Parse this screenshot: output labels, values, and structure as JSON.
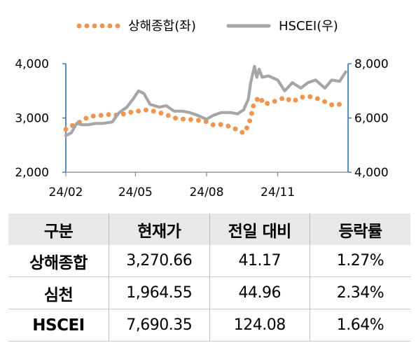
{
  "chart_data": {
    "type": "line",
    "legend": {
      "placement": "top-center"
    },
    "x_ticks": [
      "24/02",
      "24/05",
      "24/08",
      "24/11"
    ],
    "y_left": {
      "ticks": [
        "4,000",
        "3,000",
        "2,000"
      ],
      "range": [
        2000,
        4000
      ]
    },
    "y_right": {
      "ticks": [
        "8,000",
        "6,000",
        "4,000"
      ],
      "range": [
        4000,
        8000
      ]
    },
    "series": [
      {
        "name": "상해종합(좌)",
        "axis": "left",
        "style": "dotted",
        "color": "#f0954d",
        "x": [
          "24/02/01",
          "24/02/08",
          "24/02/20",
          "24/03/01",
          "24/03/10",
          "24/03/20",
          "24/04/01",
          "24/04/10",
          "24/04/20",
          "24/05/01",
          "24/05/10",
          "24/05/20",
          "24/06/01",
          "24/06/10",
          "24/06/20",
          "24/07/01",
          "24/07/10",
          "24/07/20",
          "24/08/01",
          "24/08/10",
          "24/08/20",
          "24/09/01",
          "24/09/10",
          "24/09/18",
          "24/09/24",
          "24/09/27",
          "24/10/01",
          "24/10/08",
          "24/10/15",
          "24/10/25",
          "24/11/01",
          "24/11/10",
          "24/11/20",
          "24/12/01",
          "24/12/10",
          "24/12/20",
          "25/01/01",
          "25/01/10",
          "25/01/20"
        ],
        "values": [
          2790,
          2850,
          2930,
          3020,
          3040,
          3050,
          3070,
          3040,
          3100,
          3110,
          3150,
          3140,
          3100,
          3060,
          3000,
          2980,
          2970,
          2960,
          2930,
          2870,
          2880,
          2840,
          2780,
          2720,
          2860,
          3000,
          3250,
          3390,
          3250,
          3300,
          3320,
          3380,
          3300,
          3380,
          3400,
          3370,
          3300,
          3240,
          3250
        ]
      },
      {
        "name": "HSCEI(우)",
        "axis": "right",
        "style": "solid",
        "color": "#a6a6a6",
        "x": [
          "24/02/01",
          "24/02/08",
          "24/02/15",
          "24/02/22",
          "24/03/01",
          "24/03/10",
          "24/03/20",
          "24/04/01",
          "24/04/10",
          "24/04/20",
          "24/04/28",
          "24/05/05",
          "24/05/12",
          "24/05/20",
          "24/06/01",
          "24/06/10",
          "24/06/20",
          "24/07/01",
          "24/07/10",
          "24/07/20",
          "24/08/01",
          "24/08/10",
          "24/08/20",
          "24/09/01",
          "24/09/10",
          "24/09/18",
          "24/09/24",
          "24/09/27",
          "24/10/02",
          "24/10/05",
          "24/10/08",
          "24/10/12",
          "24/10/20",
          "24/11/01",
          "24/11/10",
          "24/11/20",
          "24/12/01",
          "24/12/10",
          "24/12/20",
          "25/01/01",
          "25/01/10",
          "25/01/20",
          "25/01/28"
        ],
        "values": [
          5350,
          5450,
          5800,
          5750,
          5750,
          5800,
          5800,
          5850,
          6200,
          6400,
          6700,
          7000,
          6900,
          6500,
          6400,
          6450,
          6250,
          6250,
          6200,
          6100,
          5950,
          6100,
          6200,
          6200,
          6150,
          6300,
          6700,
          7300,
          7900,
          7500,
          7800,
          7500,
          7550,
          7400,
          7000,
          7300,
          7100,
          7300,
          7400,
          7100,
          7400,
          7350,
          7700
        ]
      }
    ]
  },
  "table": {
    "headers": [
      "구분",
      "현재가",
      "전일 대비",
      "등락률"
    ],
    "rows": [
      [
        "상해종합",
        "3,270.66",
        "41.17",
        "1.27%"
      ],
      [
        "심천",
        "1,964.55",
        "44.96",
        "2.34%"
      ],
      [
        "HSCEI",
        "7,690.35",
        "124.08",
        "1.64%"
      ]
    ]
  }
}
